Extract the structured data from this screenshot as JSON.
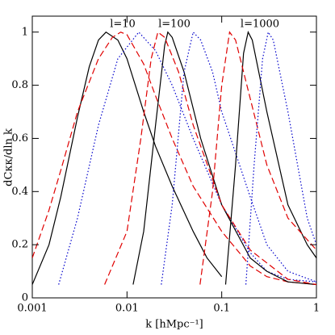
{
  "chart_data": {
    "type": "line",
    "x_label": "k [hMpc⁻¹]",
    "y_label": "dCκκ/dln k",
    "xscale": "log",
    "xlim": [
      0.001,
      1
    ],
    "xticks": [
      0.001,
      0.01,
      0.1,
      1
    ],
    "ylim": [
      0,
      1.06
    ],
    "yticks": [
      0,
      0.2,
      0.4,
      0.6,
      0.8,
      1
    ],
    "annotations": [
      "l=10",
      "l=100",
      "l=1000"
    ],
    "series": [
      {
        "color": "#000000",
        "dash": "solid",
        "x": [
          0.001,
          0.0015,
          0.002,
          0.003,
          0.004,
          0.005,
          0.006,
          0.008,
          0.01,
          0.015,
          0.02,
          0.03,
          0.05,
          0.07,
          0.1
        ],
        "values": [
          0.05,
          0.2,
          0.38,
          0.68,
          0.87,
          0.97,
          1.0,
          0.97,
          0.9,
          0.7,
          0.57,
          0.42,
          0.25,
          0.15,
          0.08
        ]
      },
      {
        "color": "#e00000",
        "dash": "dashed",
        "x": [
          0.001,
          0.0015,
          0.002,
          0.003,
          0.005,
          0.007,
          0.0086,
          0.01,
          0.015,
          0.02,
          0.03,
          0.05,
          0.1,
          0.2,
          0.3,
          0.5,
          1
        ],
        "values": [
          0.15,
          0.33,
          0.48,
          0.7,
          0.9,
          0.98,
          1.0,
          0.99,
          0.88,
          0.76,
          0.6,
          0.42,
          0.25,
          0.12,
          0.08,
          0.06,
          0.05
        ]
      },
      {
        "color": "#0000cc",
        "dash": "dotted",
        "x": [
          0.0019,
          0.003,
          0.005,
          0.008,
          0.0133,
          0.02,
          0.03,
          0.05,
          0.1,
          0.2,
          0.3,
          0.5,
          1
        ],
        "values": [
          0.05,
          0.3,
          0.65,
          0.9,
          1.0,
          0.93,
          0.8,
          0.6,
          0.35,
          0.17,
          0.1,
          0.07,
          0.06
        ]
      },
      {
        "color": "#000000",
        "dash": "solid",
        "x": [
          0.0116,
          0.015,
          0.02,
          0.025,
          0.027,
          0.03,
          0.04,
          0.06,
          0.1,
          0.2,
          0.3,
          0.5,
          1
        ],
        "values": [
          0.05,
          0.25,
          0.65,
          0.95,
          1.0,
          0.98,
          0.85,
          0.6,
          0.35,
          0.15,
          0.1,
          0.06,
          0.05
        ]
      },
      {
        "color": "#e00000",
        "dash": "dashed",
        "x": [
          0.0058,
          0.01,
          0.014,
          0.018,
          0.0212,
          0.025,
          0.035,
          0.05,
          0.1,
          0.2,
          0.5,
          1
        ],
        "values": [
          0.05,
          0.25,
          0.6,
          0.9,
          1.0,
          0.98,
          0.85,
          0.65,
          0.35,
          0.18,
          0.07,
          0.05
        ]
      },
      {
        "color": "#0000cc",
        "dash": "dotted",
        "x": [
          0.023,
          0.03,
          0.04,
          0.05,
          0.06,
          0.08,
          0.1,
          0.2,
          0.3,
          0.5,
          1
        ],
        "values": [
          0.05,
          0.35,
          0.85,
          1.0,
          0.97,
          0.85,
          0.7,
          0.38,
          0.2,
          0.1,
          0.06
        ]
      },
      {
        "color": "#000000",
        "dash": "solid",
        "x": [
          0.11,
          0.14,
          0.17,
          0.19,
          0.21,
          0.3,
          0.5,
          0.8,
          1
        ],
        "values": [
          0.05,
          0.5,
          0.92,
          1.0,
          0.97,
          0.7,
          0.35,
          0.2,
          0.15
        ]
      },
      {
        "color": "#e00000",
        "dash": "dashed",
        "x": [
          0.059,
          0.08,
          0.1,
          0.121,
          0.14,
          0.2,
          0.3,
          0.5,
          1
        ],
        "values": [
          0.05,
          0.4,
          0.8,
          1.0,
          0.97,
          0.75,
          0.5,
          0.3,
          0.18
        ]
      },
      {
        "color": "#0000cc",
        "dash": "dotted",
        "x": [
          0.18,
          0.22,
          0.27,
          0.31,
          0.35,
          0.5,
          0.8,
          1
        ],
        "values": [
          0.05,
          0.5,
          0.9,
          1.0,
          0.97,
          0.7,
          0.3,
          0.2
        ]
      }
    ]
  }
}
